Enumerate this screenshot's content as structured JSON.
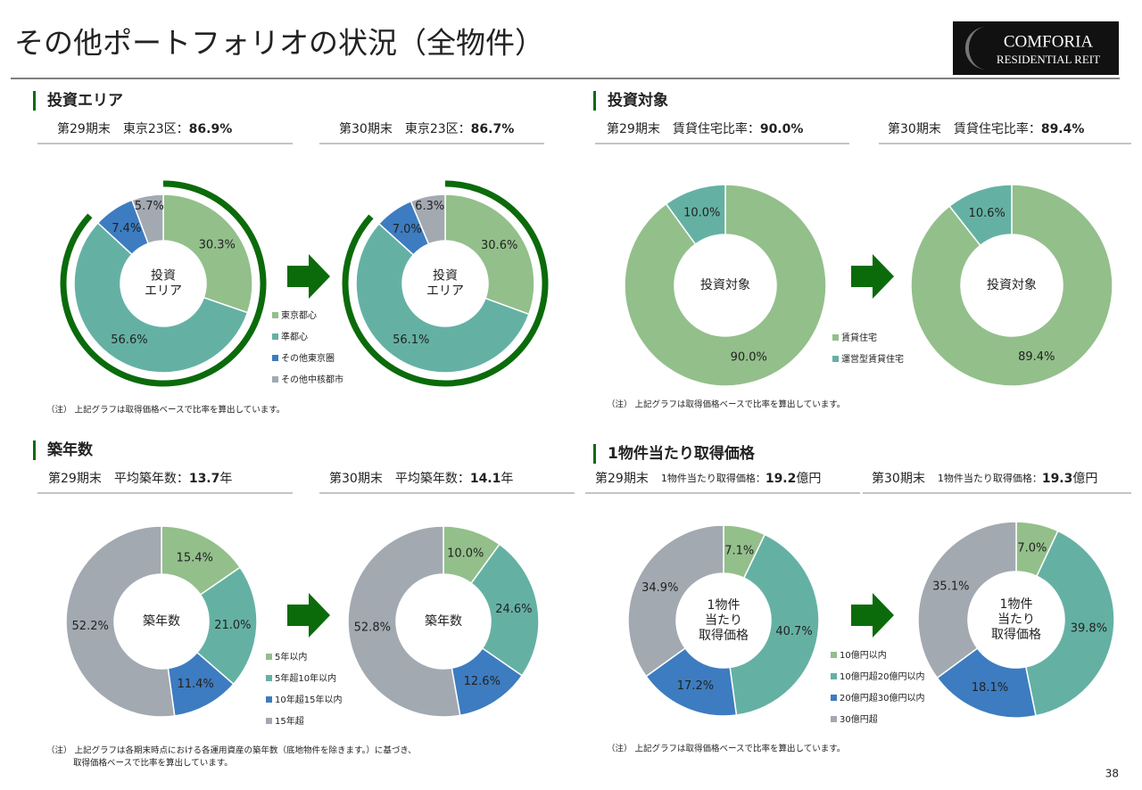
{
  "title": "その他ポートフォリオの状況（全物件）",
  "logo": {
    "line1": "COMFORIA",
    "line2": "RESIDENTIAL REIT"
  },
  "page_number": "38",
  "sections": [
    {
      "heading": "投資エリア",
      "periods": [
        {
          "period": "第29期末",
          "metric": "東京23区：",
          "value": "86.9%"
        },
        {
          "period": "第30期末",
          "metric": "東京23区：",
          "value": "86.7%"
        }
      ],
      "note": [
        "（注） 上記グラフは取得価格ベースで比率を算出しています。"
      ]
    },
    {
      "heading": "投資対象",
      "periods": [
        {
          "period": "第29期末",
          "metric": "賃貸住宅比率：",
          "value": "90.0%"
        },
        {
          "period": "第30期末",
          "metric": "賃貸住宅比率：",
          "value": "89.4%"
        }
      ],
      "note": [
        "（注） 上記グラフは取得価格ベースで比率を算出しています。"
      ]
    },
    {
      "heading": "築年数",
      "periods": [
        {
          "period": "第29期末",
          "metric": "平均築年数：",
          "value": "13.7",
          "unit": "年"
        },
        {
          "period": "第30期末",
          "metric": "平均築年数：",
          "value": "14.1",
          "unit": "年"
        }
      ],
      "note": [
        "（注） 上記グラフは各期末時点における各運用資産の築年数（底地物件を除きます。）に基づき、",
        "取得価格ベースで比率を算出しています。"
      ]
    },
    {
      "heading": "1物件当たり取得価格",
      "periods": [
        {
          "period": "第29期末",
          "metric": "1物件当たり取得価格：",
          "value": "19.2",
          "unit": "億円"
        },
        {
          "period": "第30期末",
          "metric": "1物件当たり取得価格：",
          "value": "19.3",
          "unit": "億円"
        }
      ],
      "note": [
        "（注） 上記グラフは取得価格ベースで比率を算出しています。"
      ]
    }
  ],
  "chart_data": [
    {
      "type": "pie",
      "center_label": [
        "投資",
        "エリア"
      ],
      "categories": [
        "東京都心",
        "準都心",
        "その他東京圏",
        "その他中核都市"
      ],
      "values": [
        30.3,
        56.6,
        7.4,
        5.7
      ],
      "value_labels": [
        "30.3%",
        "56.6%",
        "7.4%",
        "5.7%"
      ],
      "colors": [
        "#93bf8b",
        "#64b1a4",
        "#3d7cc0",
        "#a2a9b1"
      ],
      "outer_arc": {
        "value": 86.9,
        "color": "#0b6b0b"
      }
    },
    {
      "type": "pie",
      "center_label": [
        "投資",
        "エリア"
      ],
      "categories": [
        "東京都心",
        "準都心",
        "その他東京圏",
        "その他中核都市"
      ],
      "values": [
        30.6,
        56.1,
        7.0,
        6.3
      ],
      "value_labels": [
        "30.6%",
        "56.1%",
        "7.0%",
        "6.3%"
      ],
      "colors": [
        "#93bf8b",
        "#64b1a4",
        "#3d7cc0",
        "#a2a9b1"
      ],
      "outer_arc": {
        "value": 86.7,
        "color": "#0b6b0b"
      }
    },
    {
      "type": "pie",
      "center_label": [
        "投資対象"
      ],
      "categories": [
        "賃貸住宅",
        "運営型賃貸住宅"
      ],
      "values": [
        90.0,
        10.0
      ],
      "value_labels": [
        "90.0%",
        "10.0%"
      ],
      "colors": [
        "#93bf8b",
        "#64b1a4"
      ]
    },
    {
      "type": "pie",
      "center_label": [
        "投資対象"
      ],
      "categories": [
        "賃貸住宅",
        "運営型賃貸住宅"
      ],
      "values": [
        89.4,
        10.6
      ],
      "value_labels": [
        "89.4%",
        "10.6%"
      ],
      "colors": [
        "#93bf8b",
        "#64b1a4"
      ]
    },
    {
      "type": "pie",
      "center_label": [
        "築年数"
      ],
      "categories": [
        "5年以内",
        "5年超10年以内",
        "10年超15年以内",
        "15年超"
      ],
      "values": [
        15.4,
        21.0,
        11.4,
        52.2
      ],
      "value_labels": [
        "15.4%",
        "21.0%",
        "11.4%",
        "52.2%"
      ],
      "colors": [
        "#93bf8b",
        "#64b1a4",
        "#3d7cc0",
        "#a2a9b1"
      ]
    },
    {
      "type": "pie",
      "center_label": [
        "築年数"
      ],
      "categories": [
        "5年以内",
        "5年超10年以内",
        "10年超15年以内",
        "15年超"
      ],
      "values": [
        10.0,
        24.6,
        12.6,
        52.8
      ],
      "value_labels": [
        "10.0%",
        "24.6%",
        "12.6%",
        "52.8%"
      ],
      "colors": [
        "#93bf8b",
        "#64b1a4",
        "#3d7cc0",
        "#a2a9b1"
      ]
    },
    {
      "type": "pie",
      "center_label": [
        "1物件",
        "当たり",
        "取得価格"
      ],
      "categories": [
        "10億円以内",
        "10億円超20億円以内",
        "20億円超30億円以内",
        "30億円超"
      ],
      "values": [
        7.1,
        40.7,
        17.2,
        34.9
      ],
      "value_labels": [
        "7.1%",
        "40.7%",
        "17.2%",
        "34.9%"
      ],
      "colors": [
        "#93bf8b",
        "#64b1a4",
        "#3d7cc0",
        "#a2a9b1"
      ]
    },
    {
      "type": "pie",
      "center_label": [
        "1物件",
        "当たり",
        "取得価格"
      ],
      "categories": [
        "10億円以内",
        "10億円超20億円以内",
        "20億円超30億円以内",
        "30億円超"
      ],
      "values": [
        7.0,
        39.8,
        18.1,
        35.1
      ],
      "value_labels": [
        "7.0%",
        "39.8%",
        "18.1%",
        "35.1%"
      ],
      "colors": [
        "#93bf8b",
        "#64b1a4",
        "#3d7cc0",
        "#a2a9b1"
      ]
    }
  ]
}
